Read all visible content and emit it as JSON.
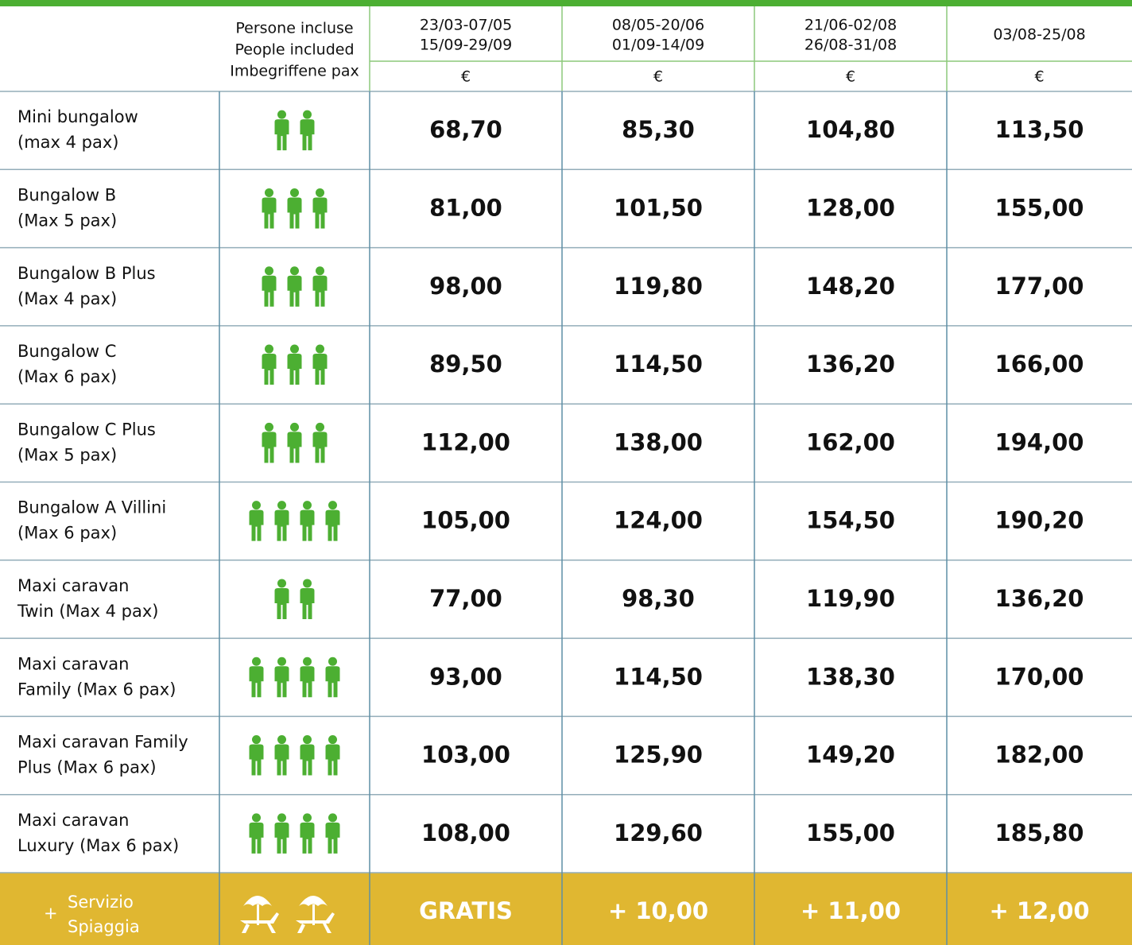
{
  "header": {
    "people_label": [
      "Persone incluse",
      "People included",
      "Imbegriffene pax"
    ],
    "periods": [
      [
        "23/03-07/05",
        "15/09-29/09"
      ],
      [
        "08/05-20/06",
        "01/09-14/09"
      ],
      [
        "21/06-02/08",
        "26/08-31/08"
      ],
      [
        "03/08-25/08"
      ]
    ],
    "currency": [
      "€",
      "€",
      "€",
      "€"
    ]
  },
  "rows": [
    {
      "name": [
        "Mini bungalow",
        "(max 4 pax)"
      ],
      "people": 2,
      "prices": [
        "68,70",
        "85,30",
        "104,80",
        "113,50"
      ]
    },
    {
      "name": [
        "Bungalow B",
        "(Max 5 pax)"
      ],
      "people": 3,
      "prices": [
        "81,00",
        "101,50",
        "128,00",
        "155,00"
      ]
    },
    {
      "name": [
        "Bungalow B Plus",
        "(Max 4 pax)"
      ],
      "people": 3,
      "prices": [
        "98,00",
        "119,80",
        "148,20",
        "177,00"
      ]
    },
    {
      "name": [
        "Bungalow C",
        "(Max 6 pax)"
      ],
      "people": 3,
      "prices": [
        "89,50",
        "114,50",
        "136,20",
        "166,00"
      ]
    },
    {
      "name": [
        "Bungalow C Plus",
        "(Max 5 pax)"
      ],
      "people": 3,
      "prices": [
        "112,00",
        "138,00",
        "162,00",
        "194,00"
      ]
    },
    {
      "name": [
        "Bungalow A Villini",
        "(Max 6 pax)"
      ],
      "people": 4,
      "prices": [
        "105,00",
        "124,00",
        "154,50",
        "190,20"
      ]
    },
    {
      "name": [
        "Maxi caravan",
        "Twin (Max 4 pax)"
      ],
      "people": 2,
      "prices": [
        "77,00",
        "98,30",
        "119,90",
        "136,20"
      ]
    },
    {
      "name": [
        "Maxi caravan",
        "Family (Max 6 pax)"
      ],
      "people": 4,
      "prices": [
        "93,00",
        "114,50",
        "138,30",
        "170,00"
      ]
    },
    {
      "name": [
        "Maxi caravan Family",
        "Plus (Max 6 pax)"
      ],
      "people": 4,
      "prices": [
        "103,00",
        "125,90",
        "149,20",
        "182,00"
      ]
    },
    {
      "name": [
        "Maxi caravan",
        "Luxury (Max 6 pax)"
      ],
      "people": 4,
      "prices": [
        "108,00",
        "129,60",
        "155,00",
        "185,80"
      ]
    }
  ],
  "footer": {
    "plus": "+",
    "label": [
      "Servizio",
      "Spiaggia"
    ],
    "prices": [
      "GRATIS",
      "+ 10,00",
      "+ 11,00",
      "+ 12,00"
    ]
  }
}
